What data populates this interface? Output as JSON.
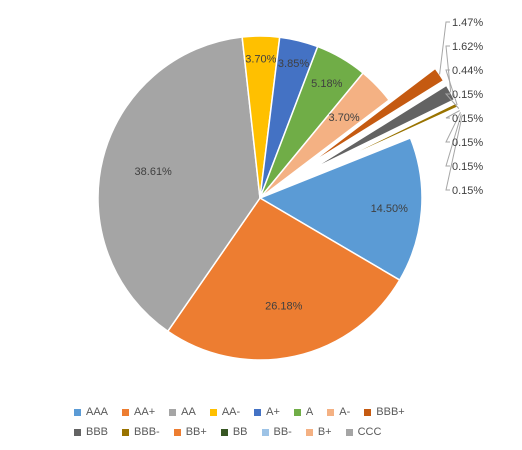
{
  "chart_data": {
    "type": "pie",
    "title": "",
    "legend_position": "bottom",
    "slices": [
      {
        "label": "AAA",
        "value": 14.5,
        "display": "14.50%",
        "color": "#5B9BD5"
      },
      {
        "label": "AA+",
        "value": 26.18,
        "display": "26.18%",
        "color": "#ED7D31"
      },
      {
        "label": "AA",
        "value": 38.61,
        "display": "38.61%",
        "color": "#A5A5A5"
      },
      {
        "label": "AA-",
        "value": 3.7,
        "display": "3.70%",
        "color": "#FFC000"
      },
      {
        "label": "A+",
        "value": 3.85,
        "display": "3.85%",
        "color": "#4472C4"
      },
      {
        "label": "A",
        "value": 5.18,
        "display": "5.18%",
        "color": "#70AD47"
      },
      {
        "label": "A-",
        "value": 3.7,
        "display": "3.70%",
        "color": "#F4B183"
      },
      {
        "label": "BBB+",
        "value": 1.47,
        "display": "1.47%",
        "color": "#C55A11"
      },
      {
        "label": "BBB",
        "value": 1.62,
        "display": "1.62%",
        "color": "#636363"
      },
      {
        "label": "BBB-",
        "value": 0.44,
        "display": "0.44%",
        "color": "#997300"
      },
      {
        "label": "BB+",
        "value": 0.15,
        "display": "0.15%",
        "color": "#ED7D31"
      },
      {
        "label": "BB",
        "value": 0.15,
        "display": "0.15%",
        "color": "#375623"
      },
      {
        "label": "BB-",
        "value": 0.15,
        "display": "0.15%",
        "color": "#9DC3E6"
      },
      {
        "label": "B+",
        "value": 0.15,
        "display": "0.15%",
        "color": "#F4B183"
      },
      {
        "label": "CCC",
        "value": 0.15,
        "display": "0.15%",
        "color": "#A5A5A5"
      }
    ]
  }
}
